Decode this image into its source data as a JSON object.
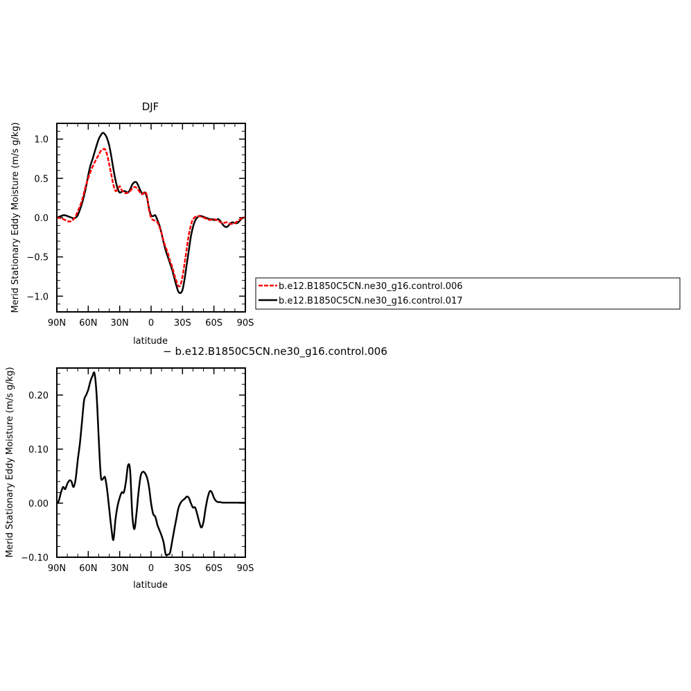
{
  "chart_data": [
    {
      "type": "line",
      "title": "DJF",
      "xlabel": "latitude",
      "ylabel": "Merid Stationary Eddy Moisture (m/s g/kg)",
      "xlim": [
        90,
        -90
      ],
      "ylim": [
        -1.2,
        1.2
      ],
      "xticks": [
        90,
        60,
        30,
        0,
        -30,
        -60,
        -90
      ],
      "xtick_labels": [
        "90N",
        "60N",
        "30N",
        "0",
        "30S",
        "60S",
        "90S"
      ],
      "yticks": [
        -1.0,
        -0.5,
        0.0,
        0.5,
        1.0
      ],
      "ytick_labels": [
        "−1.0",
        "−0.5",
        "0.0",
        "0.5",
        "1.0"
      ],
      "legend_position": "right, outside plot",
      "series": [
        {
          "name": "b.e12.B1850C5CN.ne30_g16.control.006",
          "color": "#ff0000",
          "style": "dashed",
          "x": [
            90,
            86,
            82,
            78,
            74,
            70,
            66,
            62,
            58,
            54,
            50,
            48,
            46,
            44,
            42,
            40,
            38,
            36,
            34,
            32,
            30,
            28,
            26,
            24,
            22,
            20,
            18,
            16,
            14,
            12,
            10,
            8,
            6,
            4,
            2,
            0,
            -2,
            -4,
            -6,
            -8,
            -10,
            -12,
            -14,
            -16,
            -18,
            -20,
            -22,
            -24,
            -26,
            -28,
            -30,
            -32,
            -34,
            -36,
            -38,
            -40,
            -44,
            -48,
            -52,
            -56,
            -60,
            -64,
            -68,
            -72,
            -76,
            -80,
            -84,
            -88,
            -90
          ],
          "y": [
            0.0,
            -0.01,
            -0.03,
            -0.05,
            -0.02,
            0.08,
            0.22,
            0.42,
            0.58,
            0.7,
            0.8,
            0.85,
            0.87,
            0.87,
            0.8,
            0.68,
            0.55,
            0.42,
            0.34,
            0.36,
            0.4,
            0.35,
            0.32,
            0.31,
            0.32,
            0.34,
            0.37,
            0.39,
            0.38,
            0.35,
            0.31,
            0.3,
            0.33,
            0.28,
            0.1,
            0.0,
            -0.03,
            -0.04,
            -0.06,
            -0.12,
            -0.2,
            -0.3,
            -0.38,
            -0.45,
            -0.55,
            -0.62,
            -0.72,
            -0.8,
            -0.87,
            -0.86,
            -0.75,
            -0.58,
            -0.4,
            -0.22,
            -0.1,
            -0.02,
            0.02,
            0.01,
            -0.01,
            -0.03,
            -0.02,
            -0.04,
            -0.07,
            -0.06,
            -0.08,
            -0.07,
            -0.03,
            0.0,
            0.0
          ]
        },
        {
          "name": "b.e12.B1850C5CN.ne30_g16.control.017",
          "color": "#000000",
          "style": "solid",
          "x": [
            90,
            88,
            86,
            84,
            82,
            80,
            78,
            76,
            74,
            72,
            70,
            68,
            66,
            64,
            62,
            60,
            58,
            56,
            54,
            52,
            50,
            48,
            46,
            44,
            42,
            40,
            38,
            36,
            34,
            32,
            30,
            28,
            26,
            24,
            22,
            20,
            18,
            16,
            14,
            12,
            10,
            8,
            6,
            4,
            2,
            0,
            -2,
            -4,
            -6,
            -8,
            -10,
            -12,
            -14,
            -16,
            -18,
            -20,
            -22,
            -24,
            -26,
            -28,
            -30,
            -32,
            -34,
            -36,
            -38,
            -40,
            -42,
            -44,
            -46,
            -48,
            -50,
            -52,
            -54,
            -56,
            -58,
            -60,
            -62,
            -64,
            -66,
            -68,
            -70,
            -72,
            -74,
            -76,
            -78,
            -80,
            -82,
            -84,
            -86,
            -88,
            -90
          ],
          "y": [
            0.0,
            0.01,
            0.02,
            0.03,
            0.03,
            0.02,
            0.01,
            0.0,
            -0.01,
            0.0,
            0.03,
            0.1,
            0.18,
            0.28,
            0.4,
            0.54,
            0.66,
            0.74,
            0.83,
            0.92,
            1.0,
            1.05,
            1.08,
            1.06,
            1.01,
            0.92,
            0.78,
            0.62,
            0.48,
            0.37,
            0.32,
            0.33,
            0.34,
            0.33,
            0.32,
            0.36,
            0.42,
            0.45,
            0.45,
            0.4,
            0.34,
            0.3,
            0.32,
            0.26,
            0.12,
            0.03,
            0.02,
            0.03,
            -0.03,
            -0.1,
            -0.2,
            -0.32,
            -0.42,
            -0.5,
            -0.58,
            -0.66,
            -0.76,
            -0.86,
            -0.94,
            -0.96,
            -0.92,
            -0.78,
            -0.6,
            -0.42,
            -0.24,
            -0.12,
            -0.04,
            0.0,
            0.02,
            0.02,
            0.01,
            0.0,
            -0.01,
            -0.02,
            -0.02,
            -0.03,
            -0.03,
            -0.02,
            -0.04,
            -0.08,
            -0.11,
            -0.12,
            -0.1,
            -0.07,
            -0.06,
            -0.07,
            -0.07,
            -0.05,
            -0.02,
            0.0,
            0.0
          ]
        }
      ]
    },
    {
      "type": "line",
      "title": "− b.e12.B1850C5CN.ne30_g16.control.006",
      "xlabel": "latitude",
      "ylabel": "Merid Stationary Eddy Moisture (m/s g/kg)",
      "xlim": [
        90,
        -90
      ],
      "ylim": [
        -0.1,
        0.25
      ],
      "xticks": [
        90,
        60,
        30,
        0,
        -30,
        -60,
        -90
      ],
      "xtick_labels": [
        "90N",
        "60N",
        "30N",
        "0",
        "30S",
        "60S",
        "90S"
      ],
      "yticks": [
        -0.1,
        0.0,
        0.1,
        0.2
      ],
      "ytick_labels": [
        "−0.10",
        "0.00",
        "0.10",
        "0.20"
      ],
      "series": [
        {
          "color": "#000000",
          "style": "solid",
          "x": [
            90,
            89,
            88,
            86,
            84,
            82,
            80,
            78,
            77,
            76,
            74,
            72,
            70,
            68,
            66,
            64,
            62,
            60,
            58,
            56,
            54,
            52,
            50,
            48,
            46,
            44,
            42,
            40,
            38,
            36,
            34,
            32,
            30,
            28,
            26,
            24,
            22,
            20,
            18,
            16,
            14,
            12,
            10,
            8,
            6,
            4,
            2,
            0,
            -2,
            -4,
            -6,
            -8,
            -10,
            -12,
            -14,
            -16,
            -18,
            -20,
            -22,
            -24,
            -26,
            -28,
            -30,
            -32,
            -34,
            -36,
            -38,
            -40,
            -42,
            -44,
            -46,
            -48,
            -50,
            -52,
            -54,
            -56,
            -58,
            -60,
            -62,
            -64,
            -66,
            -68,
            -70,
            -72,
            -74,
            -76,
            -78,
            -80,
            -82,
            -84,
            -86,
            -88,
            -90
          ],
          "y": [
            0.001,
            0.001,
            0.005,
            0.02,
            0.03,
            0.026,
            0.036,
            0.042,
            0.042,
            0.04,
            0.03,
            0.045,
            0.08,
            0.11,
            0.15,
            0.19,
            0.2,
            0.21,
            0.225,
            0.235,
            0.24,
            0.2,
            0.12,
            0.05,
            0.045,
            0.048,
            0.025,
            -0.01,
            -0.045,
            -0.068,
            -0.03,
            -0.005,
            0.01,
            0.02,
            0.02,
            0.04,
            0.07,
            0.06,
            -0.02,
            -0.048,
            -0.02,
            0.02,
            0.05,
            0.058,
            0.056,
            0.048,
            0.03,
            0.0,
            -0.02,
            -0.025,
            -0.04,
            -0.05,
            -0.06,
            -0.073,
            -0.095,
            -0.095,
            -0.092,
            -0.072,
            -0.05,
            -0.03,
            -0.01,
            0.0,
            0.005,
            0.008,
            0.012,
            0.01,
            0.0,
            -0.008,
            -0.008,
            -0.02,
            -0.035,
            -0.045,
            -0.035,
            -0.01,
            0.01,
            0.022,
            0.02,
            0.01,
            0.004,
            0.002,
            0.002,
            0.001,
            0.001,
            0.001,
            0.001,
            0.001,
            0.001,
            0.001,
            0.001,
            0.001,
            0.001,
            0.001,
            0.001
          ]
        }
      ]
    }
  ]
}
